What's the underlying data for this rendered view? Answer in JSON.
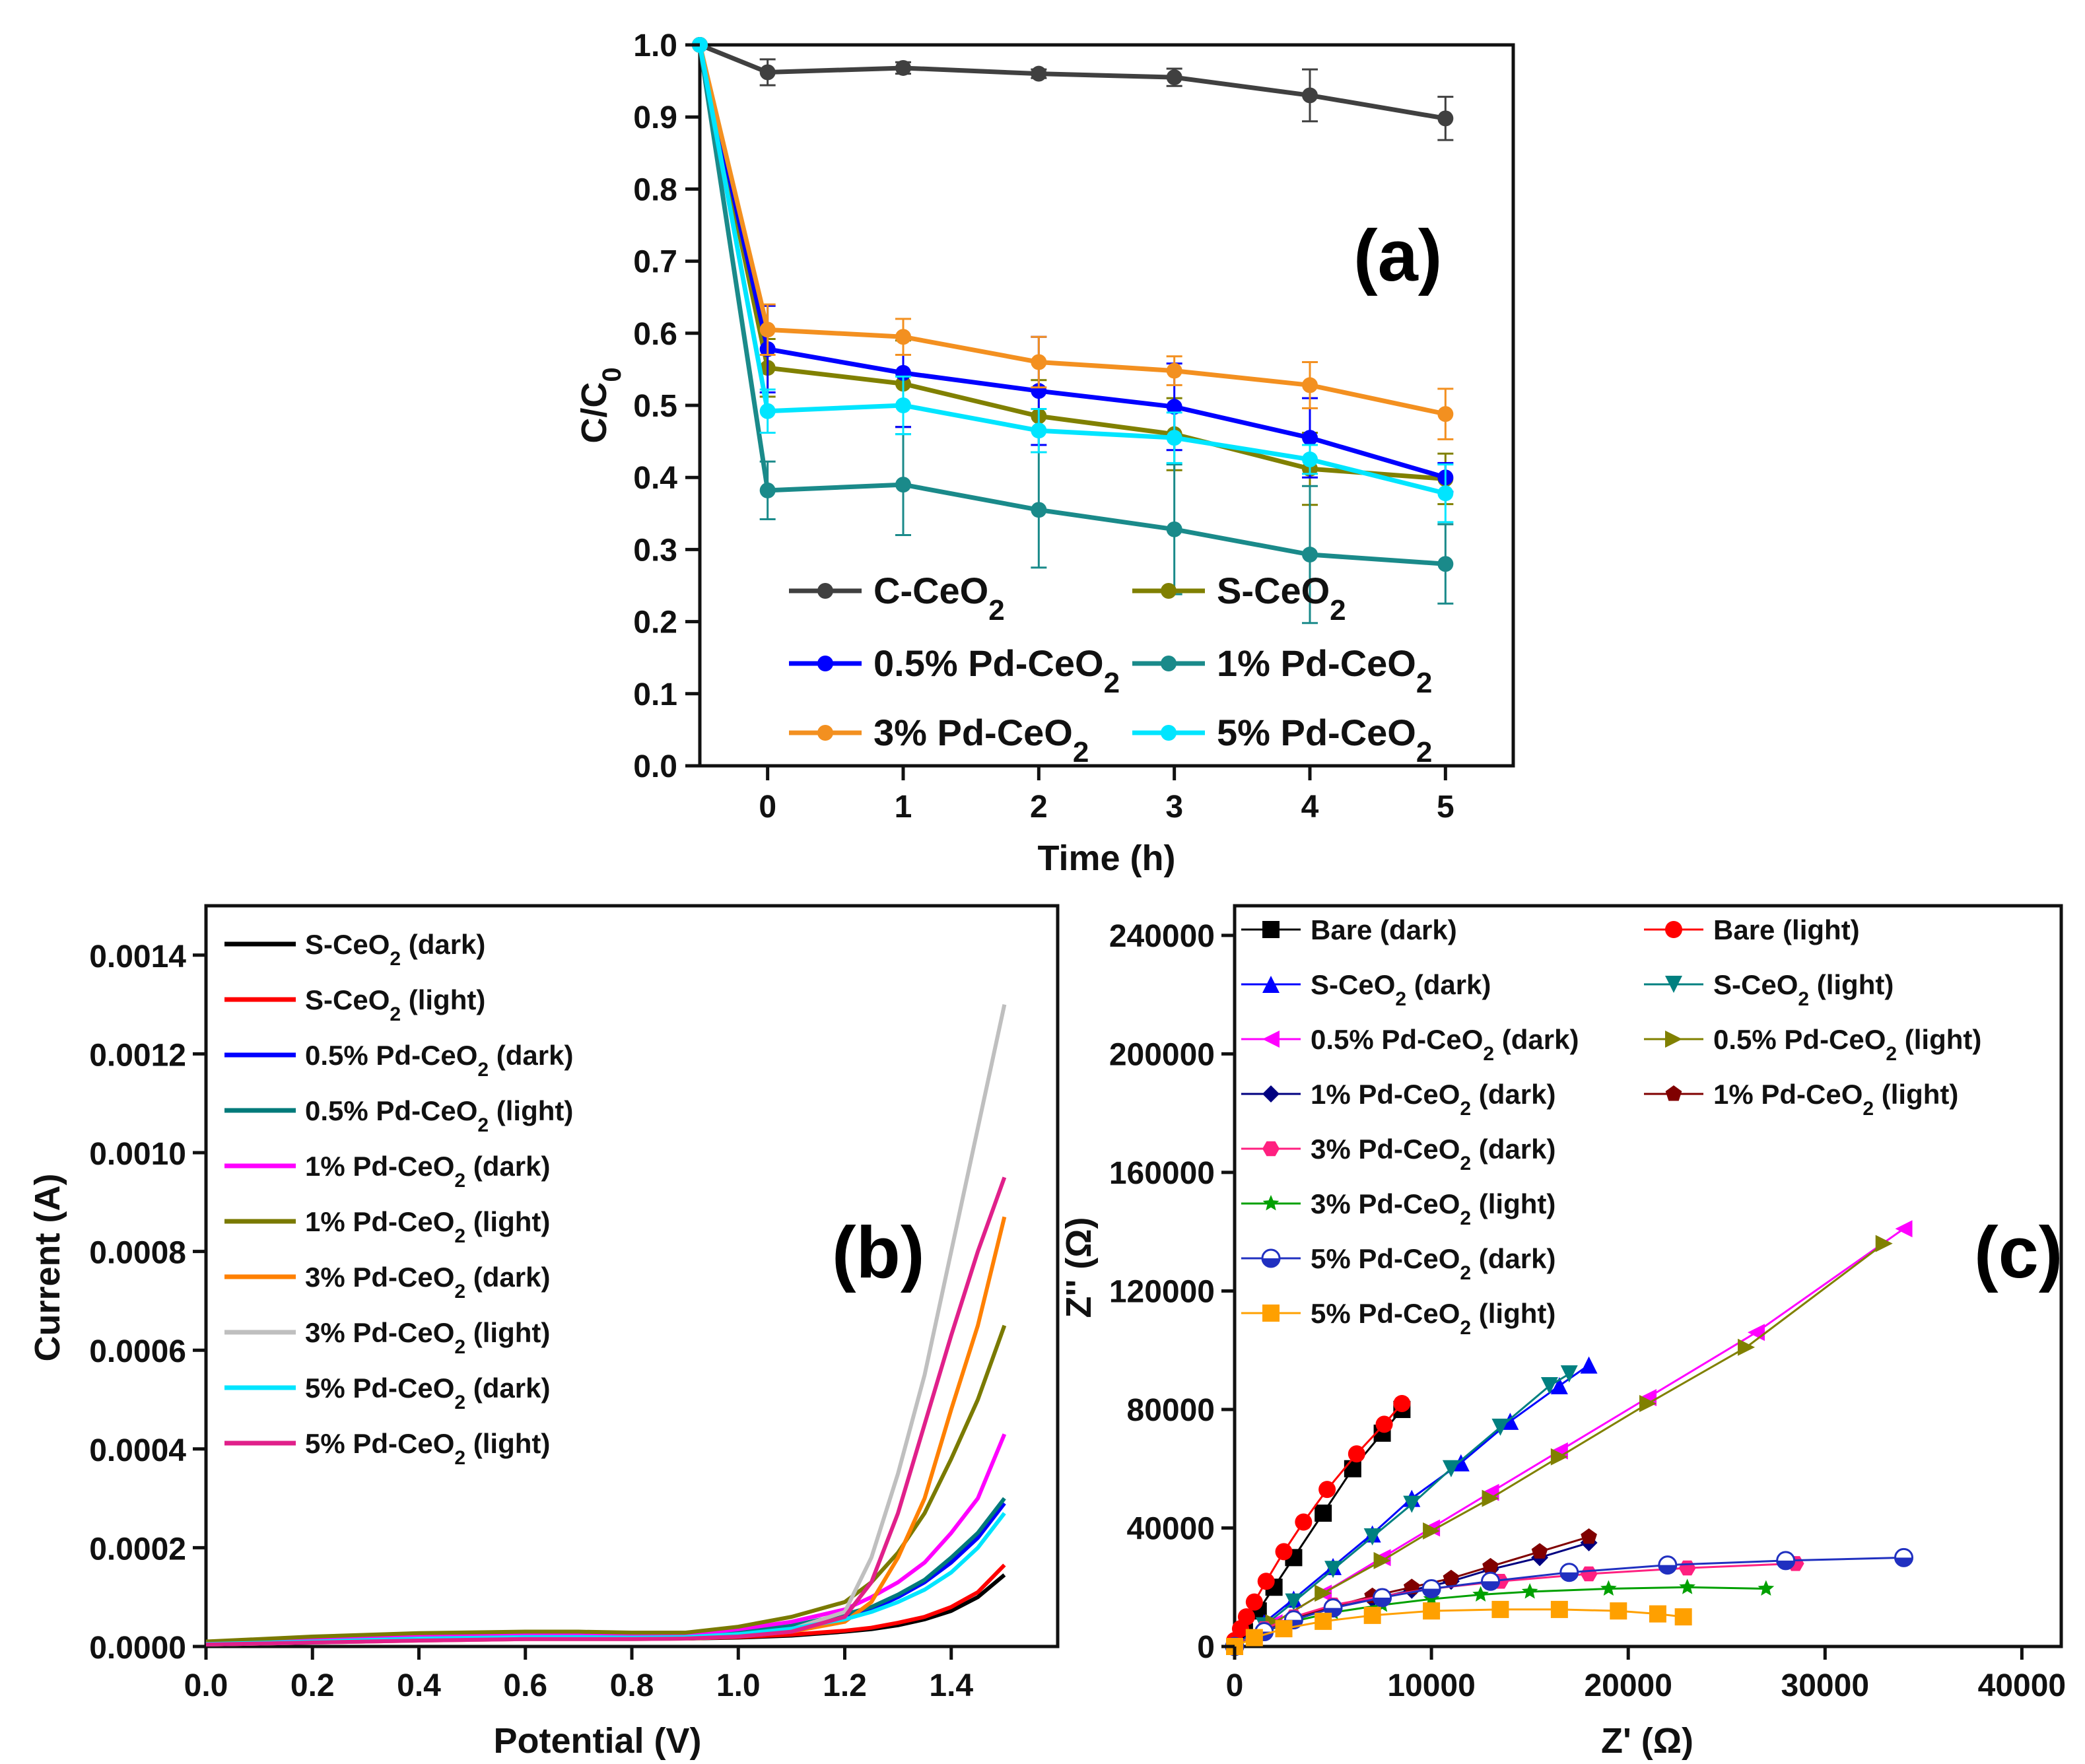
{
  "colors": {
    "c_ceo2": "#404040",
    "s_ceo2": "#808000",
    "pd05": "#0000ff",
    "pd1": "#1a8a8a",
    "pd3": "#f39020",
    "pd5": "#00e5ff",
    "b_s_dark": "#000000",
    "b_s_light": "#ff0000",
    "b_pd05_dark": "#0000ff",
    "b_pd05_light": "#007a7a",
    "b_pd1_dark": "#ff00ff",
    "b_pd1_light": "#7a7a00",
    "b_pd3_dark": "#ff8000",
    "b_pd3_light": "#bfbfbf",
    "b_pd5_dark": "#00e5ff",
    "b_pd5_light": "#e0208a",
    "c_bare_dark": "#000000",
    "c_bare_light": "#ff0000",
    "c_s_dark": "#0000ff",
    "c_s_light": "#008080",
    "c_pd05_dark": "#ff00ff",
    "c_pd05_light": "#808000",
    "c_pd1_dark": "#000080",
    "c_pd1_light": "#800000",
    "c_pd3_dark": "#ff2080",
    "c_pd3_light": "#00a000",
    "c_pd5_dark": "#2030c0",
    "c_pd5_light": "#ffa000"
  },
  "chart_data": [
    {
      "panel": "(a)",
      "type": "line",
      "xlabel": "Time (h)",
      "ylabel": "C/C0",
      "xlim": [
        -0.5,
        5.5
      ],
      "ylim": [
        0.0,
        1.0
      ],
      "xticks": [
        "0",
        "1",
        "2",
        "3",
        "4",
        "5"
      ],
      "yticks": [
        "0.0",
        "0.1",
        "0.2",
        "0.3",
        "0.4",
        "0.5",
        "0.6",
        "0.7",
        "0.8",
        "0.9",
        "1.0"
      ],
      "x": [
        -0.5,
        0,
        1,
        2,
        3,
        4,
        5
      ],
      "series": [
        {
          "name": "C-CeO",
          "sub": "2",
          "color_key": "c_ceo2",
          "values": [
            1.0,
            0.962,
            0.968,
            0.96,
            0.955,
            0.93,
            0.898
          ],
          "errors": [
            0,
            0.018,
            0.008,
            0.006,
            0.012,
            0.036,
            0.03
          ]
        },
        {
          "name": "S-CeO",
          "sub": "2",
          "color_key": "s_ceo2",
          "values": [
            1.0,
            0.552,
            0.53,
            0.485,
            0.46,
            0.412,
            0.398
          ],
          "errors": [
            0,
            0.04,
            0.06,
            0.05,
            0.05,
            0.05,
            0.035
          ]
        },
        {
          "name": "0.5% Pd-CeO",
          "sub": "2",
          "color_key": "pd05",
          "values": [
            1.0,
            0.578,
            0.545,
            0.52,
            0.498,
            0.455,
            0.4
          ],
          "errors": [
            0,
            0.06,
            0.075,
            0.075,
            0.06,
            0.055,
            0.02
          ]
        },
        {
          "name": "1% Pd-CeO",
          "sub": "2",
          "color_key": "pd1",
          "values": [
            1.0,
            0.382,
            0.39,
            0.355,
            0.328,
            0.293,
            0.28
          ],
          "errors": [
            0,
            0.04,
            0.07,
            0.08,
            0.09,
            0.095,
            0.055
          ]
        },
        {
          "name": "3% Pd-CeO",
          "sub": "2",
          "color_key": "pd3",
          "values": [
            1.0,
            0.605,
            0.595,
            0.56,
            0.548,
            0.528,
            0.488
          ],
          "errors": [
            0,
            0.035,
            0.025,
            0.035,
            0.02,
            0.032,
            0.035
          ]
        },
        {
          "name": "5% Pd-CeO",
          "sub": "2",
          "color_key": "pd5",
          "values": [
            1.0,
            0.492,
            0.5,
            0.465,
            0.455,
            0.425,
            0.378
          ],
          "errors": [
            0,
            0.03,
            0.04,
            0.03,
            0.035,
            0.02,
            0.04
          ]
        }
      ]
    },
    {
      "panel": "(b)",
      "type": "line",
      "xlabel": "Potential (V)",
      "ylabel": "Current (A)",
      "xlim": [
        0.0,
        1.6
      ],
      "ylim": [
        0.0,
        0.0015
      ],
      "xticks": [
        "0.0",
        "0.2",
        "0.4",
        "0.6",
        "0.8",
        "1.0",
        "1.2",
        "1.4"
      ],
      "yticks": [
        "0.0000",
        "0.0002",
        "0.0004",
        "0.0006",
        "0.0008",
        "0.0010",
        "0.0012",
        "0.0014"
      ],
      "x": [
        0.0,
        0.2,
        0.4,
        0.6,
        0.7,
        0.8,
        0.9,
        1.0,
        1.1,
        1.2,
        1.25,
        1.3,
        1.35,
        1.4,
        1.45,
        1.5
      ],
      "series": [
        {
          "name": "S-CeO",
          "sub": "2",
          "suffix": " (dark)",
          "color_key": "b_s_dark",
          "values": [
            5e-06,
            1e-05,
            1.5e-05,
            1.8e-05,
            1.8e-05,
            1.7e-05,
            1.6e-05,
            1.8e-05,
            2.2e-05,
            3e-05,
            3.5e-05,
            4.3e-05,
            5.5e-05,
            7.2e-05,
            0.0001,
            0.000145
          ]
        },
        {
          "name": "S-CeO",
          "sub": "2",
          "suffix": " (light)",
          "color_key": "b_s_light",
          "values": [
            5e-06,
            1e-05,
            1.5e-05,
            1.8e-05,
            1.8e-05,
            1.7e-05,
            1.6e-05,
            1.9e-05,
            2.4e-05,
            3.2e-05,
            3.8e-05,
            4.8e-05,
            6e-05,
            8e-05,
            0.00011,
            0.000165
          ]
        },
        {
          "name": "0.5% Pd-CeO",
          "sub": "2",
          "suffix": " (dark)",
          "color_key": "b_pd05_dark",
          "values": [
            6e-06,
            1.2e-05,
            1.8e-05,
            2e-05,
            2e-05,
            2e-05,
            2e-05,
            2.8e-05,
            4e-05,
            6e-05,
            7.5e-05,
            0.0001,
            0.00013,
            0.00017,
            0.00022,
            0.00029
          ]
        },
        {
          "name": "0.5% Pd-CeO",
          "sub": "2",
          "suffix": " (light)",
          "color_key": "b_pd05_light",
          "values": [
            6e-06,
            1.2e-05,
            1.8e-05,
            2.2e-05,
            2.2e-05,
            2.2e-05,
            2.2e-05,
            3e-05,
            4.2e-05,
            6.5e-05,
            8e-05,
            0.000105,
            0.000135,
            0.00018,
            0.00023,
            0.0003
          ]
        },
        {
          "name": "1% Pd-CeO",
          "sub": "2",
          "suffix": " (dark)",
          "color_key": "b_pd1_dark",
          "values": [
            7e-06,
            1.4e-05,
            2e-05,
            2.4e-05,
            2.4e-05,
            2.3e-05,
            2.3e-05,
            3.5e-05,
            5e-05,
            7.5e-05,
            0.0001,
            0.00013,
            0.00017,
            0.00023,
            0.0003,
            0.00043
          ]
        },
        {
          "name": "1% Pd-CeO",
          "sub": "2",
          "suffix": " (light)",
          "color_key": "b_pd1_light",
          "values": [
            1e-05,
            2e-05,
            2.7e-05,
            3e-05,
            3e-05,
            2.8e-05,
            2.8e-05,
            4e-05,
            6e-05,
            9e-05,
            0.00013,
            0.00019,
            0.00027,
            0.00038,
            0.0005,
            0.00065
          ]
        },
        {
          "name": "3% Pd-CeO",
          "sub": "2",
          "suffix": " (dark)",
          "color_key": "b_pd3_dark",
          "values": [
            4e-06,
            8e-06,
            1.2e-05,
            1.5e-05,
            1.5e-05,
            1.5e-05,
            1.6e-05,
            2e-05,
            3e-05,
            5e-05,
            9e-05,
            0.00018,
            0.0003,
            0.00048,
            0.00065,
            0.00087
          ]
        },
        {
          "name": "3% Pd-CeO",
          "sub": "2",
          "suffix": " (light)",
          "color_key": "b_pd3_light",
          "values": [
            4e-06,
            8e-06,
            1.2e-05,
            1.5e-05,
            1.5e-05,
            1.5e-05,
            1.6e-05,
            2.2e-05,
            3.5e-05,
            7e-05,
            0.00018,
            0.00035,
            0.00055,
            0.0008,
            0.00105,
            0.0013
          ]
        },
        {
          "name": "5% Pd-CeO",
          "sub": "2",
          "suffix": " (dark)",
          "color_key": "b_pd5_dark",
          "values": [
            5e-06,
            1e-05,
            1.6e-05,
            1.9e-05,
            1.9e-05,
            1.8e-05,
            1.9e-05,
            2.5e-05,
            3.6e-05,
            5.5e-05,
            7e-05,
            9e-05,
            0.000115,
            0.00015,
            0.0002,
            0.00027
          ]
        },
        {
          "name": "5% Pd-CeO",
          "sub": "2",
          "suffix": " (light)",
          "color_key": "b_pd5_light",
          "values": [
            4e-06,
            8e-06,
            1.2e-05,
            1.5e-05,
            1.5e-05,
            1.5e-05,
            1.6e-05,
            2e-05,
            3e-05,
            6e-05,
            0.00013,
            0.00027,
            0.00045,
            0.00063,
            0.0008,
            0.00095
          ]
        }
      ]
    },
    {
      "panel": "(c)",
      "type": "scatter",
      "xlabel": "Z' (Ω)",
      "ylabel": "Z'' (Ω)",
      "xlim": [
        0,
        42000
      ],
      "ylim": [
        0,
        250000
      ],
      "xticks": [
        "0",
        "10000",
        "20000",
        "30000",
        "40000"
      ],
      "yticks": [
        "0",
        "40000",
        "80000",
        "120000",
        "160000",
        "200000",
        "240000"
      ],
      "series": [
        {
          "name": "Bare (dark)",
          "marker": "square",
          "color_key": "c_bare_dark",
          "x": [
            0,
            500,
            1200,
            2000,
            3000,
            4500,
            6000,
            7500,
            8500
          ],
          "y": [
            0,
            5000,
            12000,
            20000,
            30000,
            45000,
            60000,
            72000,
            80000
          ]
        },
        {
          "name": "Bare (light)",
          "marker": "circle",
          "color_key": "c_bare_light",
          "x": [
            0,
            300,
            600,
            1000,
            1600,
            2500,
            3500,
            4700,
            6200,
            7600,
            8500
          ],
          "y": [
            2000,
            6000,
            10000,
            15000,
            22000,
            32000,
            42000,
            53000,
            65000,
            75000,
            82000
          ]
        },
        {
          "name": "S-CeO",
          "sub": "2",
          "suffix": " (dark)",
          "marker": "triangle-up",
          "color_key": "c_s_dark",
          "x": [
            0,
            1500,
            3000,
            5000,
            7000,
            9000,
            11500,
            14000,
            16500,
            18000
          ],
          "y": [
            0,
            8000,
            16000,
            27000,
            38000,
            50000,
            62000,
            76000,
            88000,
            95000
          ]
        },
        {
          "name": "S-CeO",
          "sub": "2",
          "suffix": " (light)",
          "marker": "triangle-down",
          "color_key": "c_s_light",
          "x": [
            0,
            1500,
            3000,
            5000,
            7000,
            9000,
            11000,
            13500,
            16000,
            17000
          ],
          "y": [
            0,
            7000,
            15000,
            26000,
            37000,
            48000,
            60000,
            74000,
            88000,
            92000
          ]
        },
        {
          "name": "0.5% Pd-CeO",
          "sub": "2",
          "suffix": " (dark)",
          "marker": "triangle-left",
          "color_key": "c_pd05_dark",
          "x": [
            0,
            2000,
            4500,
            7500,
            10000,
            13000,
            16500,
            21000,
            26500,
            34000
          ],
          "y": [
            0,
            8000,
            18000,
            30000,
            40000,
            52000,
            66000,
            84000,
            106000,
            141000
          ]
        },
        {
          "name": "0.5% Pd-CeO",
          "sub": "2",
          "suffix": " (light)",
          "marker": "triangle-right",
          "color_key": "c_pd05_light",
          "x": [
            0,
            2000,
            4500,
            7500,
            10000,
            13000,
            16500,
            21000,
            26000,
            33000
          ],
          "y": [
            0,
            8000,
            18000,
            29000,
            39000,
            50000,
            64000,
            82000,
            101000,
            136000
          ]
        },
        {
          "name": "1% Pd-CeO",
          "sub": "2",
          "suffix": " (dark)",
          "marker": "diamond",
          "color_key": "c_pd1_dark",
          "x": [
            0,
            1500,
            3000,
            5000,
            7000,
            9000,
            11000,
            13000,
            15500,
            18000
          ],
          "y": [
            0,
            5000,
            9000,
            13000,
            16000,
            19000,
            22000,
            26000,
            30000,
            35000
          ]
        },
        {
          "name": "1% Pd-CeO",
          "sub": "2",
          "suffix": " (light)",
          "marker": "pentagon",
          "color_key": "c_pd1_light",
          "x": [
            0,
            1500,
            3000,
            5000,
            7000,
            9000,
            11000,
            13000,
            15500,
            18000
          ],
          "y": [
            0,
            5000,
            9500,
            13500,
            17000,
            20000,
            23000,
            27000,
            32000,
            37000
          ]
        },
        {
          "name": "3% Pd-CeO",
          "sub": "2",
          "suffix": " (dark)",
          "marker": "hexagon",
          "color_key": "c_pd3_dark",
          "x": [
            0,
            1500,
            3000,
            5000,
            7500,
            10000,
            13500,
            18000,
            23000,
            28500
          ],
          "y": [
            0,
            6000,
            10000,
            14000,
            17000,
            19500,
            22000,
            24500,
            26500,
            28000
          ]
        },
        {
          "name": "3% Pd-CeO",
          "sub": "2",
          "suffix": " (light)",
          "marker": "star",
          "color_key": "c_pd3_light",
          "x": [
            0,
            1500,
            3000,
            5000,
            7500,
            10000,
            12500,
            15000,
            19000,
            23000,
            27000
          ],
          "y": [
            0,
            5000,
            8500,
            11500,
            14000,
            16000,
            17500,
            18500,
            19500,
            20000,
            19500
          ]
        },
        {
          "name": "5% Pd-CeO",
          "sub": "2",
          "suffix": " (dark)",
          "marker": "half-circle",
          "color_key": "c_pd5_dark",
          "x": [
            0,
            1500,
            3000,
            5000,
            7500,
            10000,
            13000,
            17000,
            22000,
            28000,
            34000
          ],
          "y": [
            0,
            5000,
            9000,
            13000,
            16500,
            19500,
            22000,
            25000,
            27500,
            29000,
            30000
          ]
        },
        {
          "name": "5% Pd-CeO",
          "sub": "2",
          "suffix": " (light)",
          "marker": "square",
          "color_key": "c_pd5_light",
          "x": [
            0,
            1000,
            2500,
            4500,
            7000,
            10000,
            13500,
            16500,
            19500,
            21500,
            22800
          ],
          "y": [
            0,
            3000,
            6000,
            8500,
            10500,
            12000,
            12500,
            12500,
            12000,
            11000,
            10000
          ]
        }
      ]
    }
  ]
}
